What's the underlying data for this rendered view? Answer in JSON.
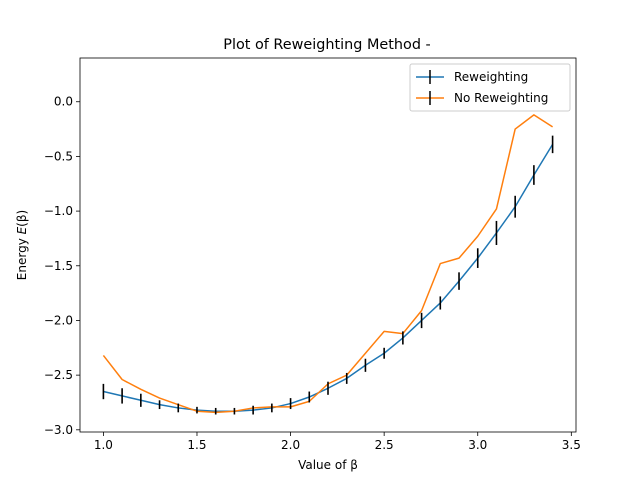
{
  "chart_data": {
    "type": "line",
    "title": "Plot of Reweighting Method -",
    "xlabel": "Value of β",
    "ylabel_prefix": "Energy ",
    "ylabel_symbol": "E",
    "ylabel_arg": "(β)",
    "xlim": [
      0.875,
      3.525
    ],
    "ylim": [
      -3.02,
      0.4
    ],
    "x_ticks": [
      1.0,
      1.5,
      2.0,
      2.5,
      3.0,
      3.5
    ],
    "x_tick_labels": [
      "1.0",
      "1.5",
      "2.0",
      "2.5",
      "3.0",
      "3.5"
    ],
    "y_ticks": [
      0.0,
      -0.5,
      -1.0,
      -1.5,
      -2.0,
      -2.5,
      -3.0
    ],
    "y_tick_labels": [
      "0.0",
      "−0.5",
      "−1.0",
      "−1.5",
      "−2.0",
      "−2.5",
      "−3.0"
    ],
    "legend_position": "top-right",
    "grid": false,
    "x": [
      1.0,
      1.1,
      1.2,
      1.3,
      1.4,
      1.5,
      1.6,
      1.7,
      1.8,
      1.9,
      2.0,
      2.1,
      2.2,
      2.3,
      2.4,
      2.5,
      2.6,
      2.7,
      2.8,
      2.9,
      3.0,
      3.1,
      3.2,
      3.3,
      3.4
    ],
    "series": [
      {
        "name": "Reweighting",
        "color": "#1f77b4",
        "values": [
          -2.65,
          -2.69,
          -2.73,
          -2.77,
          -2.8,
          -2.82,
          -2.83,
          -2.83,
          -2.82,
          -2.8,
          -2.76,
          -2.7,
          -2.62,
          -2.53,
          -2.41,
          -2.3,
          -2.16,
          -2.0,
          -1.84,
          -1.64,
          -1.43,
          -1.2,
          -0.96,
          -0.67,
          -0.39
        ],
        "errors": [
          0.07,
          0.07,
          0.06,
          0.04,
          0.04,
          0.03,
          0.03,
          0.03,
          0.04,
          0.04,
          0.05,
          0.05,
          0.06,
          0.05,
          0.06,
          0.05,
          0.06,
          0.07,
          0.06,
          0.08,
          0.09,
          0.11,
          0.1,
          0.09,
          0.08
        ]
      },
      {
        "name": "No Reweighting",
        "color": "#ff7f0e",
        "values": [
          -2.32,
          -2.54,
          -2.63,
          -2.71,
          -2.77,
          -2.83,
          -2.84,
          -2.83,
          -2.8,
          -2.79,
          -2.79,
          -2.74,
          -2.58,
          -2.5,
          -2.3,
          -2.1,
          -2.12,
          -1.91,
          -1.48,
          -1.43,
          -1.23,
          -0.98,
          -0.25,
          -0.12,
          -0.23
        ]
      }
    ]
  }
}
